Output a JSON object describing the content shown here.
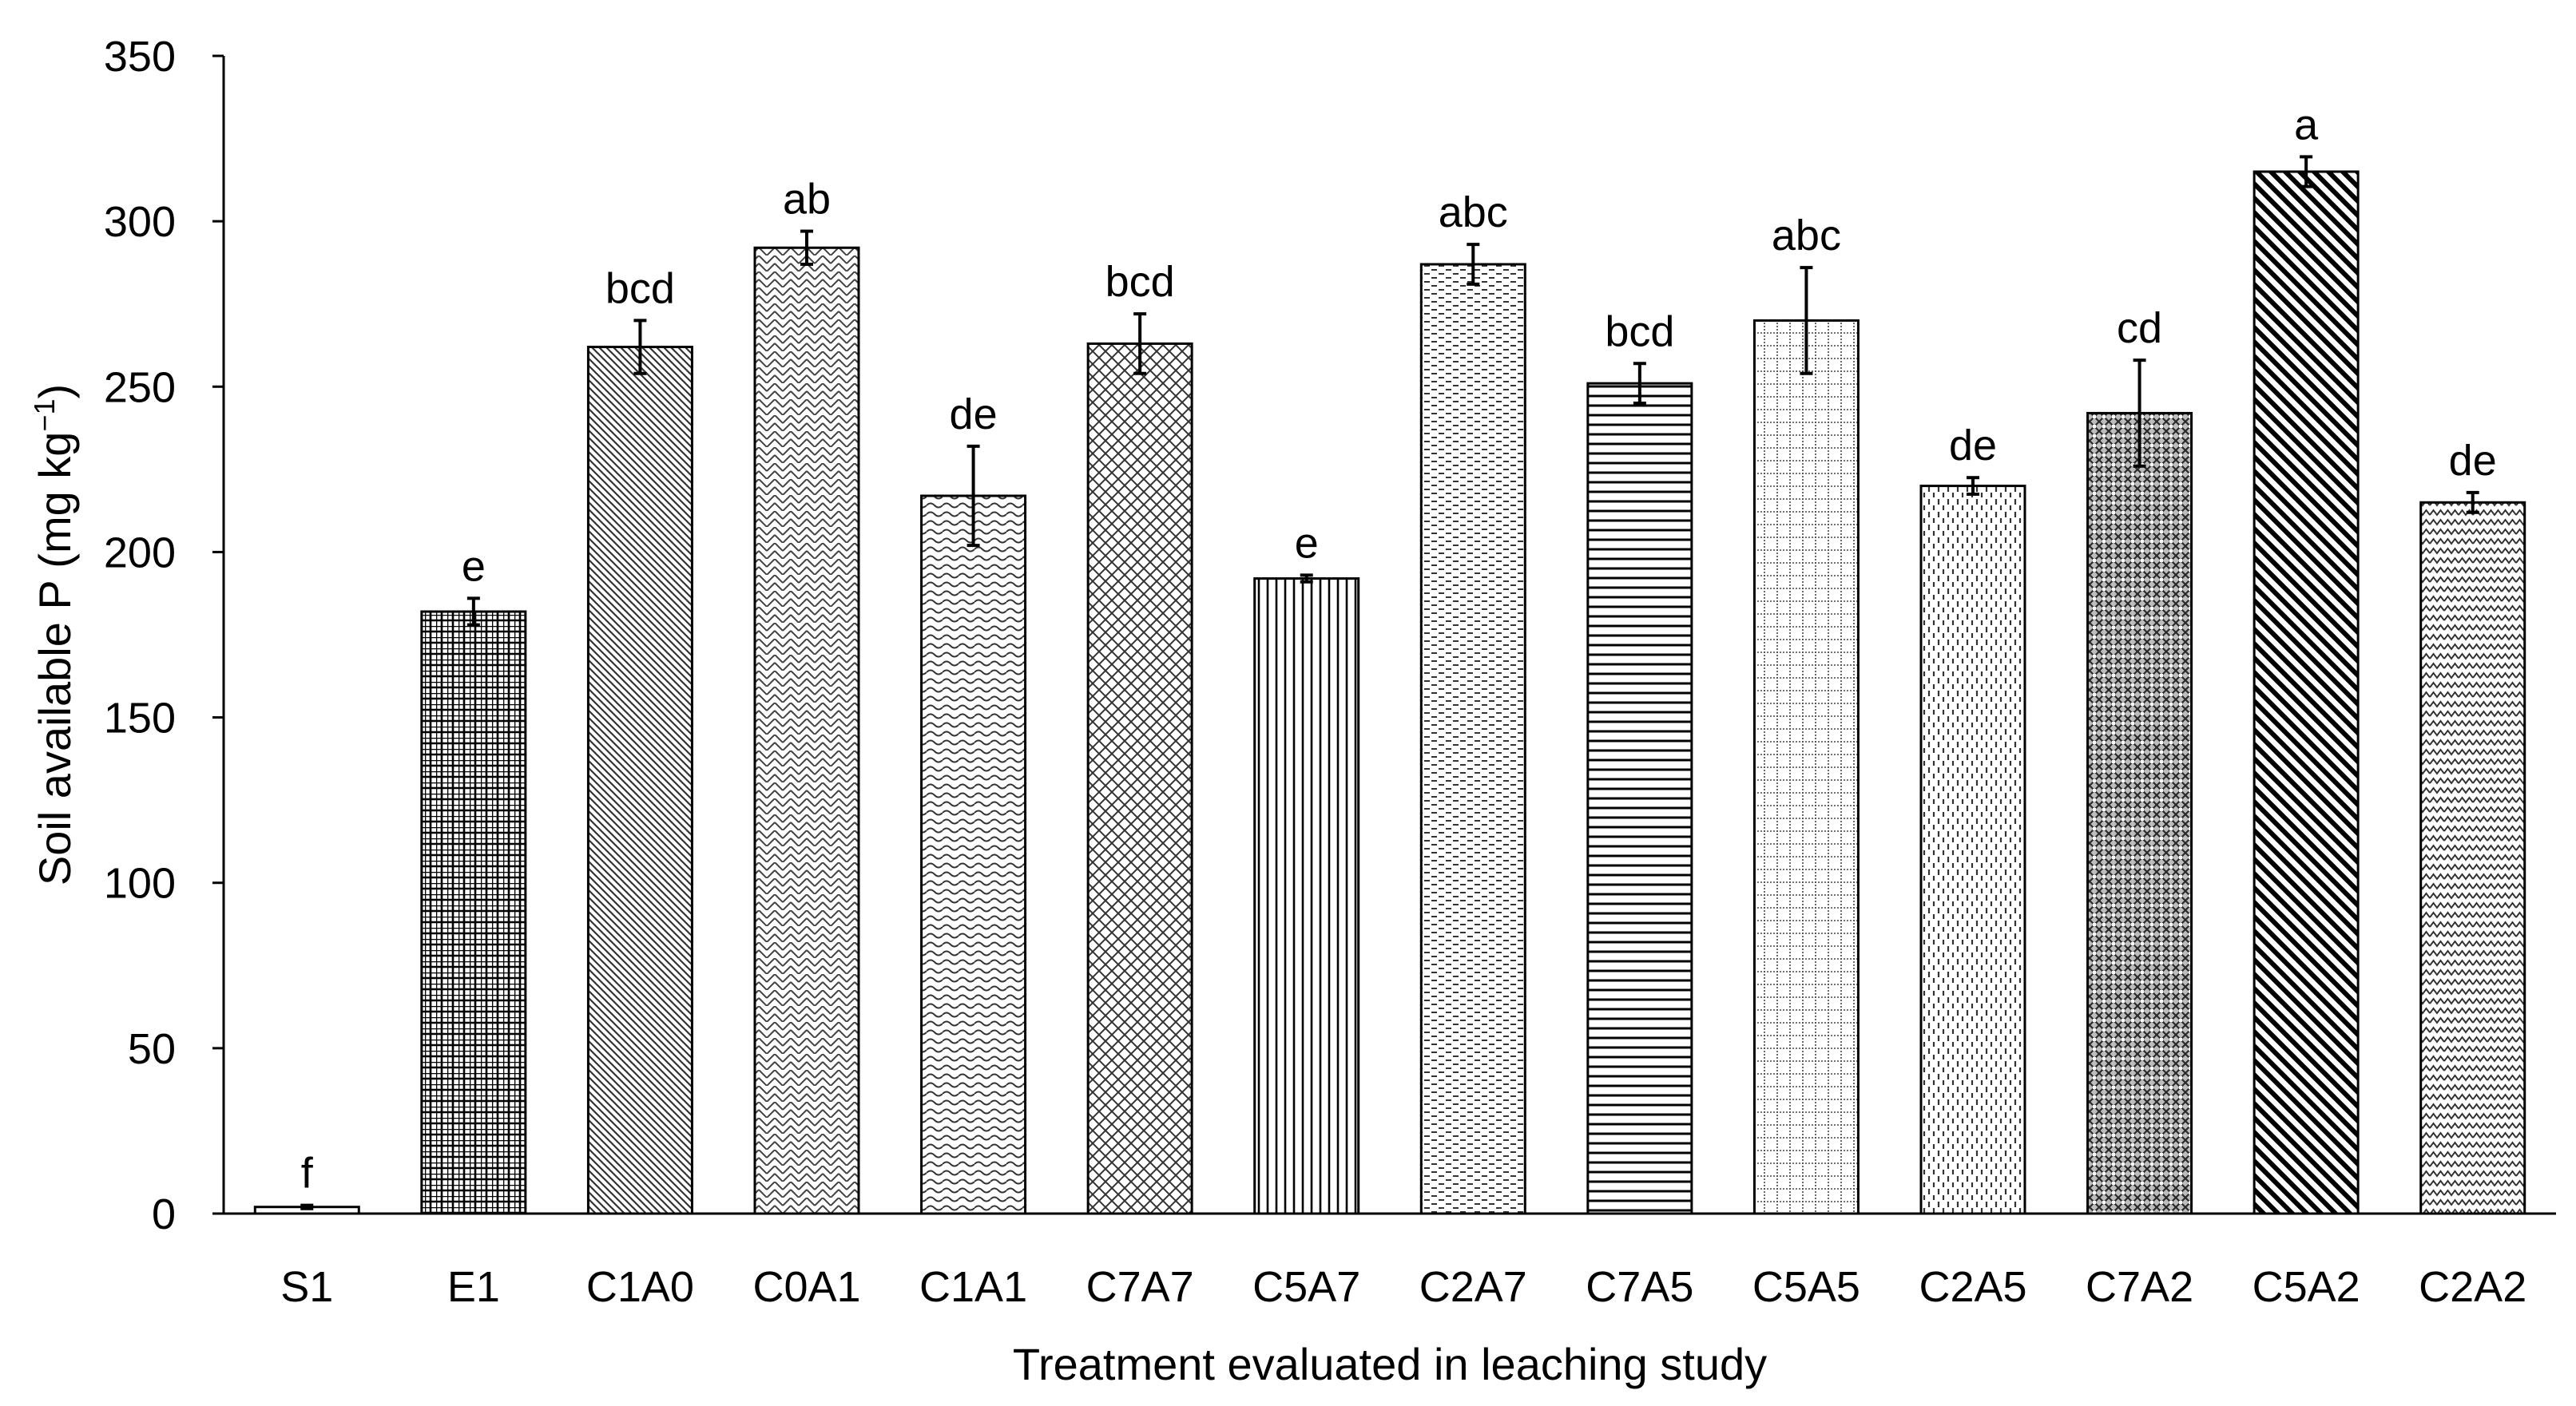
{
  "chart_data": {
    "type": "bar",
    "title": "",
    "xlabel": "Treatment evaluated in leaching study",
    "ylabel": "Soil available P (mg kg",
    "ylabel_superscript": "−1",
    "ylabel_close": ")",
    "ylim": [
      0,
      350
    ],
    "yticks": [
      0,
      50,
      100,
      150,
      200,
      250,
      300,
      350
    ],
    "grid": false,
    "legend": "none",
    "bars": [
      {
        "category": "S1",
        "value": 2,
        "error": 0.5,
        "letter": "f",
        "pattern": "plain"
      },
      {
        "category": "E1",
        "value": 182,
        "error": 4,
        "letter": "e",
        "pattern": "grid"
      },
      {
        "category": "C1A0",
        "value": 262,
        "error": 8,
        "letter": "bcd",
        "pattern": "diag-dense"
      },
      {
        "category": "C0A1",
        "value": 292,
        "error": 5,
        "letter": "ab",
        "pattern": "weave"
      },
      {
        "category": "C1A1",
        "value": 217,
        "error": 15,
        "letter": "de",
        "pattern": "wave"
      },
      {
        "category": "C7A7",
        "value": 263,
        "error": 9,
        "letter": "bcd",
        "pattern": "cross-hatch"
      },
      {
        "category": "C5A7",
        "value": 192,
        "error": 1,
        "letter": "e",
        "pattern": "vertical"
      },
      {
        "category": "C2A7",
        "value": 287,
        "error": 6,
        "letter": "abc",
        "pattern": "dash-h"
      },
      {
        "category": "C7A5",
        "value": 251,
        "error": 6,
        "letter": "bcd",
        "pattern": "horizontal"
      },
      {
        "category": "C5A5",
        "value": 270,
        "error": 16,
        "letter": "abc",
        "pattern": "dotted-grid"
      },
      {
        "category": "C2A5",
        "value": 220,
        "error": 2.5,
        "letter": "de",
        "pattern": "dash-v"
      },
      {
        "category": "C7A2",
        "value": 242,
        "error": 16,
        "letter": "cd",
        "pattern": "dark-check"
      },
      {
        "category": "C5A2",
        "value": 315,
        "error": 4.5,
        "letter": "a",
        "pattern": "diag-bold"
      },
      {
        "category": "C2A2",
        "value": 215,
        "error": 3,
        "letter": "de",
        "pattern": "zigzag"
      }
    ]
  }
}
